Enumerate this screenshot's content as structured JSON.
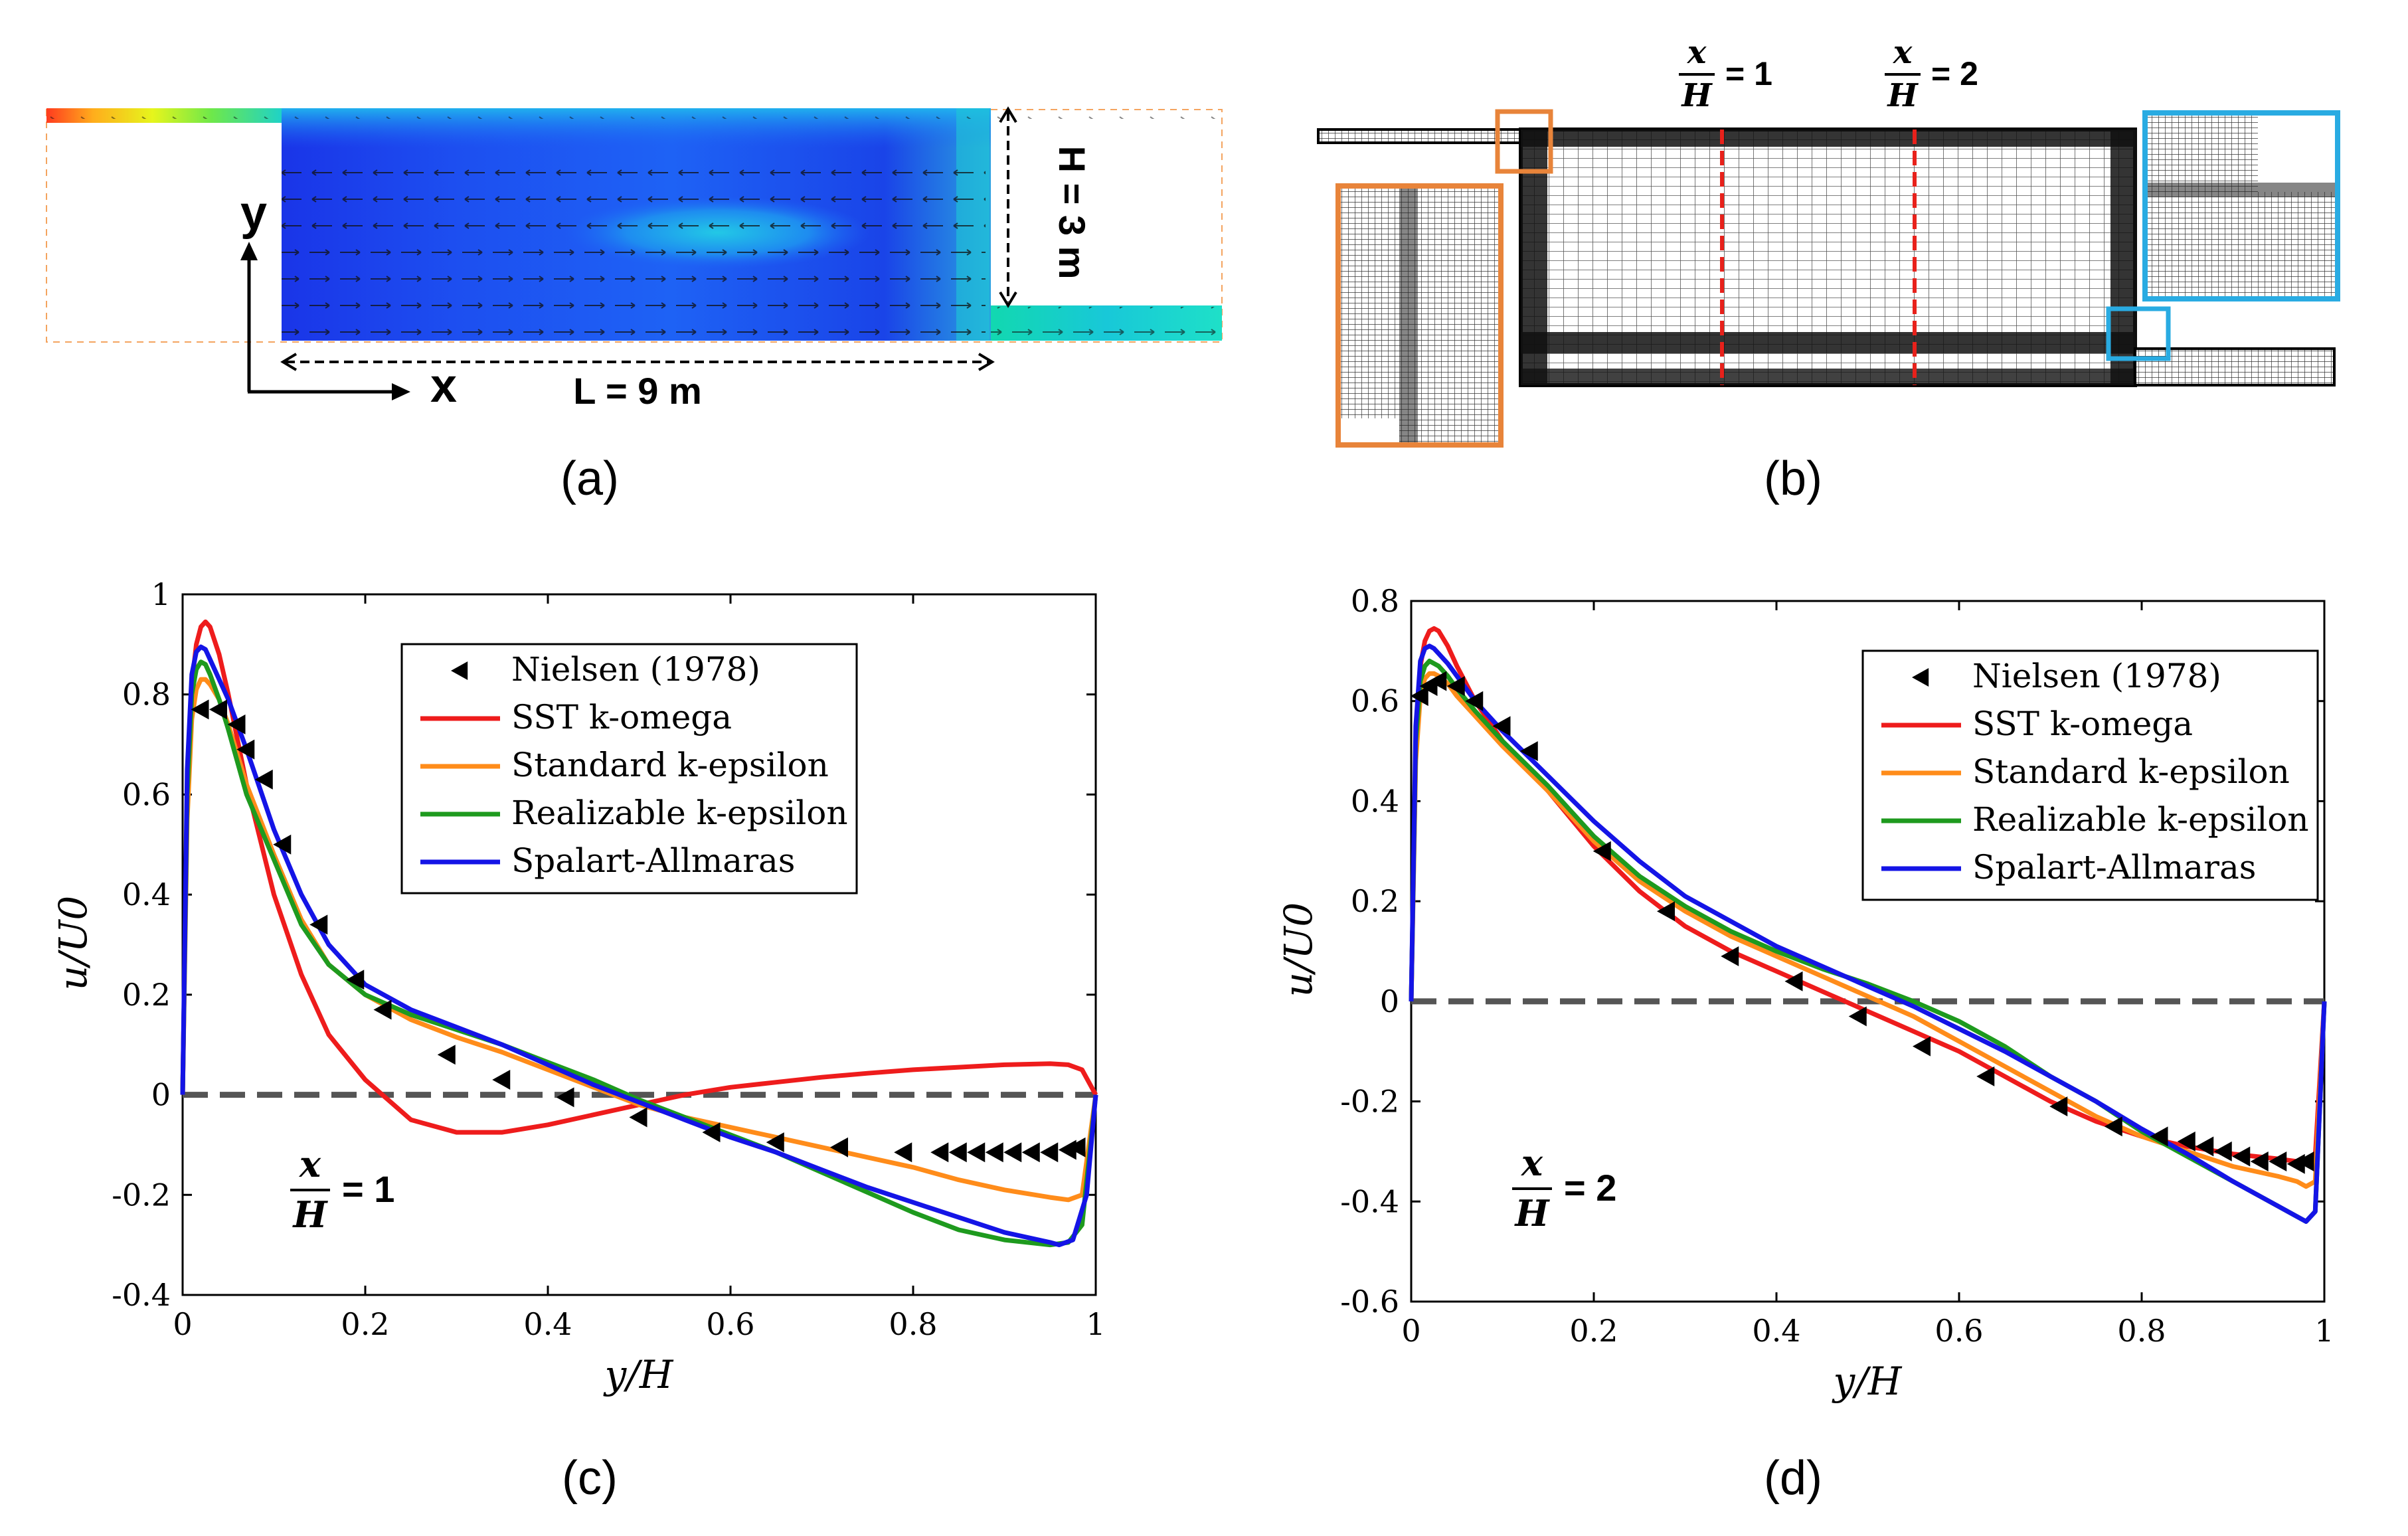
{
  "panels": {
    "a": {
      "label": "(a)",
      "axis_y_label": "y",
      "axis_x_label": "x",
      "height_label": "H = 3 m",
      "length_label": "L = 9 m"
    },
    "b": {
      "label": "(b)",
      "sections": [
        {
          "num": "x",
          "den": "H",
          "eq": "=  1"
        },
        {
          "num": "x",
          "den": "H",
          "eq": "=  2"
        }
      ],
      "colors": {
        "orange": "#E8843A",
        "cyan": "#29ABE2",
        "red": "#E8211B"
      }
    },
    "c": {
      "label": "(c)"
    },
    "d": {
      "label": "(d)"
    }
  },
  "colors": {
    "SST k-omega": "#EE1C1C",
    "Standard k-epsilon": "#FF8C1A",
    "Realizable k-epsilon": "#1E9A1E",
    "Spalart-Allmaras": "#1414E6",
    "Nielsen (1978)": "#000000"
  },
  "chart_data": [
    {
      "type": "line",
      "id": "c",
      "title": "",
      "xlabel": "y/H",
      "ylabel": "u/U0",
      "xlim": [
        0,
        1
      ],
      "ylim": [
        -0.4,
        1
      ],
      "xticks": [
        0,
        0.2,
        0.4,
        0.6,
        0.8,
        1
      ],
      "yticks": [
        -0.4,
        -0.2,
        0,
        0.2,
        0.4,
        0.6,
        0.8,
        1
      ],
      "xtick_labels": [
        "0",
        "0.2",
        "0.4",
        "0.6",
        "0.8",
        "1"
      ],
      "ytick_labels": [
        "-0.4",
        "-0.2",
        "0",
        "0.2",
        "0.4",
        "0.6",
        "0.8",
        "1"
      ],
      "annotation": {
        "num": "x",
        "den": "H",
        "eq": "=  1"
      },
      "legend": [
        "Nielsen (1978)",
        "SST k-omega",
        "Standard k-epsilon",
        "Realizable k-epsilon",
        "Spalart-Allmaras"
      ],
      "reference_line": 0,
      "experiment": {
        "name": "Nielsen (1978)",
        "x": [
          0.02,
          0.04,
          0.06,
          0.07,
          0.09,
          0.11,
          0.15,
          0.19,
          0.22,
          0.29,
          0.35,
          0.42,
          0.5,
          0.58,
          0.65,
          0.72,
          0.79,
          0.83,
          0.85,
          0.87,
          0.89,
          0.91,
          0.93,
          0.95,
          0.97,
          0.98
        ],
        "y": [
          0.77,
          0.77,
          0.74,
          0.69,
          0.63,
          0.5,
          0.34,
          0.23,
          0.17,
          0.08,
          0.03,
          -0.005,
          -0.045,
          -0.075,
          -0.095,
          -0.105,
          -0.115,
          -0.115,
          -0.115,
          -0.115,
          -0.115,
          -0.115,
          -0.115,
          -0.115,
          -0.11,
          -0.105
        ]
      },
      "series": [
        {
          "name": "SST k-omega",
          "x": [
            0,
            0.005,
            0.01,
            0.015,
            0.02,
            0.025,
            0.03,
            0.04,
            0.05,
            0.07,
            0.1,
            0.13,
            0.16,
            0.2,
            0.25,
            0.3,
            0.35,
            0.4,
            0.45,
            0.5,
            0.55,
            0.6,
            0.65,
            0.7,
            0.75,
            0.8,
            0.85,
            0.9,
            0.95,
            0.97,
            0.985,
            1
          ],
          "y": [
            0,
            0.6,
            0.82,
            0.9,
            0.935,
            0.945,
            0.935,
            0.88,
            0.8,
            0.62,
            0.4,
            0.24,
            0.12,
            0.03,
            -0.05,
            -0.075,
            -0.075,
            -0.06,
            -0.04,
            -0.02,
            0,
            0.015,
            0.025,
            0.035,
            0.043,
            0.05,
            0.055,
            0.06,
            0.062,
            0.06,
            0.05,
            0
          ]
        },
        {
          "name": "Standard k-epsilon",
          "x": [
            0,
            0.005,
            0.01,
            0.015,
            0.02,
            0.025,
            0.03,
            0.04,
            0.05,
            0.07,
            0.1,
            0.13,
            0.16,
            0.2,
            0.25,
            0.3,
            0.35,
            0.4,
            0.45,
            0.5,
            0.55,
            0.6,
            0.65,
            0.7,
            0.75,
            0.8,
            0.85,
            0.9,
            0.95,
            0.97,
            0.985,
            1
          ],
          "y": [
            0,
            0.55,
            0.75,
            0.81,
            0.83,
            0.83,
            0.82,
            0.79,
            0.74,
            0.62,
            0.48,
            0.35,
            0.26,
            0.2,
            0.15,
            0.115,
            0.085,
            0.05,
            0.015,
            -0.02,
            -0.045,
            -0.065,
            -0.085,
            -0.105,
            -0.125,
            -0.145,
            -0.17,
            -0.19,
            -0.205,
            -0.21,
            -0.2,
            0
          ]
        },
        {
          "name": "Realizable k-epsilon",
          "x": [
            0,
            0.005,
            0.01,
            0.015,
            0.02,
            0.025,
            0.03,
            0.04,
            0.05,
            0.07,
            0.1,
            0.13,
            0.16,
            0.2,
            0.25,
            0.3,
            0.35,
            0.4,
            0.45,
            0.5,
            0.55,
            0.6,
            0.65,
            0.7,
            0.75,
            0.8,
            0.85,
            0.9,
            0.95,
            0.97,
            0.985,
            1
          ],
          "y": [
            0,
            0.6,
            0.8,
            0.85,
            0.865,
            0.86,
            0.84,
            0.79,
            0.73,
            0.6,
            0.47,
            0.34,
            0.26,
            0.2,
            0.16,
            0.13,
            0.1,
            0.065,
            0.03,
            -0.01,
            -0.045,
            -0.08,
            -0.115,
            -0.155,
            -0.195,
            -0.235,
            -0.27,
            -0.29,
            -0.3,
            -0.295,
            -0.26,
            0
          ]
        },
        {
          "name": "Spalart-Allmaras",
          "x": [
            0,
            0.005,
            0.01,
            0.015,
            0.02,
            0.025,
            0.03,
            0.04,
            0.05,
            0.07,
            0.1,
            0.13,
            0.16,
            0.2,
            0.25,
            0.3,
            0.35,
            0.4,
            0.45,
            0.5,
            0.55,
            0.6,
            0.65,
            0.7,
            0.75,
            0.8,
            0.85,
            0.9,
            0.95,
            0.96,
            0.975,
            0.99,
            1
          ],
          "y": [
            0,
            0.65,
            0.84,
            0.885,
            0.895,
            0.89,
            0.87,
            0.83,
            0.79,
            0.69,
            0.53,
            0.4,
            0.3,
            0.22,
            0.17,
            0.135,
            0.1,
            0.06,
            0.02,
            -0.015,
            -0.05,
            -0.085,
            -0.115,
            -0.15,
            -0.185,
            -0.215,
            -0.245,
            -0.275,
            -0.295,
            -0.3,
            -0.29,
            -0.2,
            0
          ]
        }
      ]
    },
    {
      "type": "line",
      "id": "d",
      "title": "",
      "xlabel": "y/H",
      "ylabel": "u/U0",
      "xlim": [
        0,
        1
      ],
      "ylim": [
        -0.6,
        0.8
      ],
      "xticks": [
        0,
        0.2,
        0.4,
        0.6,
        0.8,
        1
      ],
      "yticks": [
        -0.6,
        -0.4,
        -0.2,
        0,
        0.2,
        0.4,
        0.6,
        0.8
      ],
      "xtick_labels": [
        "0",
        "0.2",
        "0.4",
        "0.6",
        "0.8",
        "1"
      ],
      "ytick_labels": [
        "-0.6",
        "-0.4",
        "-0.2",
        "0",
        "0.2",
        "0.4",
        "0.6",
        "0.8"
      ],
      "annotation": {
        "num": "x",
        "den": "H",
        "eq": "= 2"
      },
      "legend": [
        "Nielsen (1978)",
        "SST k-omega",
        "Standard k-epsilon",
        "Realizable k-epsilon",
        "Spalart-Allmaras"
      ],
      "reference_line": 0,
      "experiment": {
        "name": "Nielsen (1978)",
        "x": [
          0.01,
          0.02,
          0.03,
          0.05,
          0.07,
          0.1,
          0.13,
          0.21,
          0.28,
          0.35,
          0.42,
          0.49,
          0.56,
          0.63,
          0.71,
          0.77,
          0.82,
          0.85,
          0.87,
          0.89,
          0.91,
          0.93,
          0.95,
          0.97,
          0.98
        ],
        "y": [
          0.61,
          0.63,
          0.64,
          0.63,
          0.6,
          0.55,
          0.5,
          0.3,
          0.18,
          0.09,
          0.04,
          -0.03,
          -0.09,
          -0.15,
          -0.21,
          -0.25,
          -0.27,
          -0.28,
          -0.29,
          -0.3,
          -0.31,
          -0.32,
          -0.32,
          -0.325,
          -0.32
        ]
      },
      "series": [
        {
          "name": "SST k-omega",
          "x": [
            0,
            0.005,
            0.01,
            0.015,
            0.02,
            0.025,
            0.03,
            0.04,
            0.05,
            0.07,
            0.1,
            0.15,
            0.2,
            0.25,
            0.3,
            0.35,
            0.4,
            0.45,
            0.5,
            0.55,
            0.6,
            0.65,
            0.7,
            0.75,
            0.8,
            0.85,
            0.9,
            0.95,
            0.97,
            0.98,
            0.99,
            1
          ],
          "y": [
            0,
            0.5,
            0.67,
            0.72,
            0.74,
            0.745,
            0.74,
            0.71,
            0.67,
            0.6,
            0.52,
            0.42,
            0.31,
            0.22,
            0.15,
            0.1,
            0.06,
            0.02,
            -0.02,
            -0.06,
            -0.1,
            -0.15,
            -0.2,
            -0.24,
            -0.27,
            -0.29,
            -0.305,
            -0.315,
            -0.32,
            -0.325,
            -0.31,
            0
          ]
        },
        {
          "name": "Standard k-epsilon",
          "x": [
            0,
            0.005,
            0.01,
            0.015,
            0.02,
            0.025,
            0.03,
            0.04,
            0.05,
            0.07,
            0.1,
            0.15,
            0.2,
            0.25,
            0.3,
            0.35,
            0.4,
            0.45,
            0.5,
            0.55,
            0.6,
            0.65,
            0.7,
            0.75,
            0.8,
            0.85,
            0.9,
            0.95,
            0.97,
            0.98,
            0.99,
            1
          ],
          "y": [
            0,
            0.48,
            0.61,
            0.645,
            0.655,
            0.655,
            0.65,
            0.635,
            0.61,
            0.57,
            0.51,
            0.42,
            0.32,
            0.24,
            0.18,
            0.13,
            0.09,
            0.05,
            0.01,
            -0.03,
            -0.08,
            -0.13,
            -0.18,
            -0.23,
            -0.27,
            -0.3,
            -0.33,
            -0.35,
            -0.36,
            -0.37,
            -0.36,
            0
          ]
        },
        {
          "name": "Realizable k-epsilon",
          "x": [
            0,
            0.005,
            0.01,
            0.015,
            0.02,
            0.025,
            0.03,
            0.04,
            0.05,
            0.07,
            0.1,
            0.15,
            0.2,
            0.25,
            0.3,
            0.35,
            0.4,
            0.45,
            0.5,
            0.55,
            0.6,
            0.65,
            0.7,
            0.75,
            0.8,
            0.85,
            0.9,
            0.95,
            0.97,
            0.98,
            0.99,
            1
          ],
          "y": [
            0,
            0.52,
            0.64,
            0.67,
            0.68,
            0.675,
            0.67,
            0.65,
            0.625,
            0.58,
            0.52,
            0.43,
            0.33,
            0.25,
            0.19,
            0.14,
            0.1,
            0.065,
            0.035,
            0,
            -0.04,
            -0.09,
            -0.15,
            -0.2,
            -0.26,
            -0.31,
            -0.36,
            -0.41,
            -0.43,
            -0.44,
            -0.42,
            0
          ]
        },
        {
          "name": "Spalart-Allmaras",
          "x": [
            0,
            0.005,
            0.01,
            0.015,
            0.02,
            0.025,
            0.03,
            0.04,
            0.05,
            0.07,
            0.1,
            0.15,
            0.2,
            0.25,
            0.3,
            0.35,
            0.4,
            0.45,
            0.5,
            0.55,
            0.6,
            0.65,
            0.7,
            0.75,
            0.8,
            0.85,
            0.9,
            0.95,
            0.97,
            0.98,
            0.99,
            1
          ],
          "y": [
            0,
            0.55,
            0.68,
            0.705,
            0.71,
            0.705,
            0.695,
            0.675,
            0.65,
            0.6,
            0.54,
            0.45,
            0.36,
            0.28,
            0.21,
            0.16,
            0.11,
            0.07,
            0.03,
            -0.01,
            -0.055,
            -0.1,
            -0.15,
            -0.2,
            -0.255,
            -0.305,
            -0.36,
            -0.41,
            -0.43,
            -0.44,
            -0.42,
            0
          ]
        }
      ]
    }
  ]
}
